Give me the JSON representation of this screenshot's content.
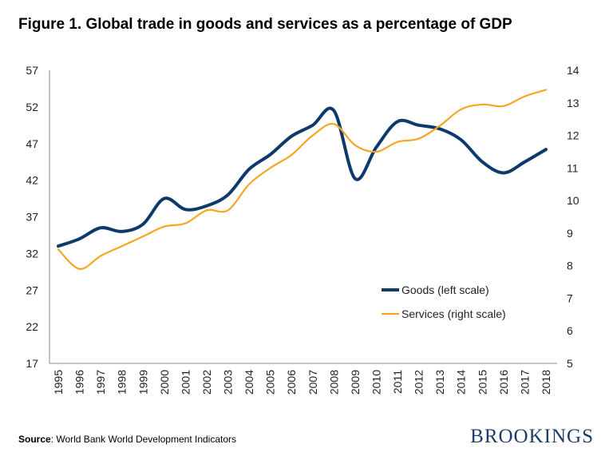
{
  "chart_data": {
    "type": "line",
    "title": "Figure 1. Global trade in goods and services as a percentage of GDP",
    "x": [
      1995,
      1996,
      1997,
      1998,
      1999,
      2000,
      2001,
      2002,
      2003,
      2004,
      2005,
      2006,
      2007,
      2008,
      2009,
      2010,
      2011,
      2012,
      2013,
      2014,
      2015,
      2016,
      2017,
      2018
    ],
    "y_left": {
      "range": [
        17,
        57
      ],
      "ticks": [
        17,
        22,
        27,
        32,
        37,
        42,
        47,
        52,
        57
      ]
    },
    "y_right": {
      "range": [
        5,
        14
      ],
      "ticks": [
        5,
        6,
        7,
        8,
        9,
        10,
        11,
        12,
        13,
        14
      ]
    },
    "grid": false,
    "legend_placement": "center-right",
    "series": [
      {
        "name": "Goods (left scale)",
        "axis": "left",
        "color": "#0d3a6b",
        "values": [
          33,
          34,
          35.5,
          35,
          36,
          39.5,
          38,
          38.5,
          40,
          43.5,
          45.5,
          48,
          49.5,
          51.5,
          42.2,
          46.5,
          50,
          49.5,
          49,
          47.5,
          44.5,
          43,
          44.5,
          46.2
        ]
      },
      {
        "name": "Services (right scale)",
        "axis": "right",
        "color": "#f5a623",
        "values": [
          8.5,
          7.9,
          8.3,
          8.6,
          8.9,
          9.2,
          9.3,
          9.7,
          9.7,
          10.5,
          11.0,
          11.4,
          12.0,
          12.35,
          11.7,
          11.5,
          11.8,
          11.9,
          12.3,
          12.8,
          12.95,
          12.9,
          13.2,
          13.4
        ]
      }
    ]
  },
  "footer": {
    "source_label": "Source",
    "source_text": ": World Bank World Development Indicators",
    "logo": "BROOKINGS"
  }
}
